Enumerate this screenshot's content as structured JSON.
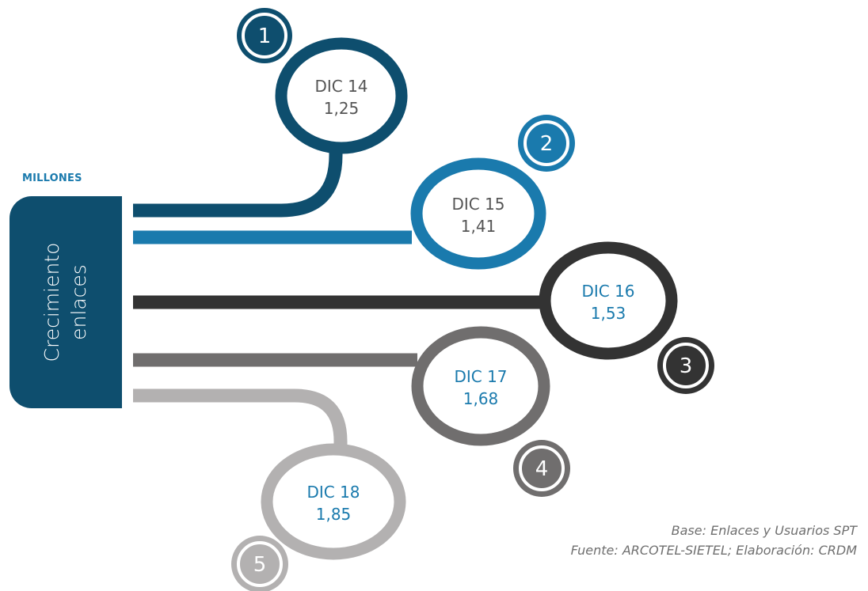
{
  "unit_label": "MILLONES",
  "side_title": {
    "line1": "Crecimiento",
    "line2": "enlaces"
  },
  "footnote": {
    "base": "Base: Enlaces y Usuarios SPT",
    "source": "Fuente: ARCOTEL-SIETEL; Elaboración: CRDM"
  },
  "colors": {
    "panel": "#0e4e6e",
    "stage_1": "#0e4e6e",
    "stage_2": "#1a7aad",
    "stage_3": "#333333",
    "stage_4": "#706e6e",
    "stage_5": "#b3b1b1",
    "value_text_dark": "#555555",
    "value_text_blue": "#1a7aad"
  },
  "stages": [
    {
      "number": "1",
      "period": "DIC 14",
      "value": "1,25",
      "value_num": 1.25
    },
    {
      "number": "2",
      "period": "DIC 15",
      "value": "1,41",
      "value_num": 1.41
    },
    {
      "number": "3",
      "period": "DIC 16",
      "value": "1,53",
      "value_num": 1.53
    },
    {
      "number": "4",
      "period": "DIC 17",
      "value": "1,68",
      "value_num": 1.68
    },
    {
      "number": "5",
      "period": "DIC 18",
      "value": "1,85",
      "value_num": 1.85
    }
  ]
}
